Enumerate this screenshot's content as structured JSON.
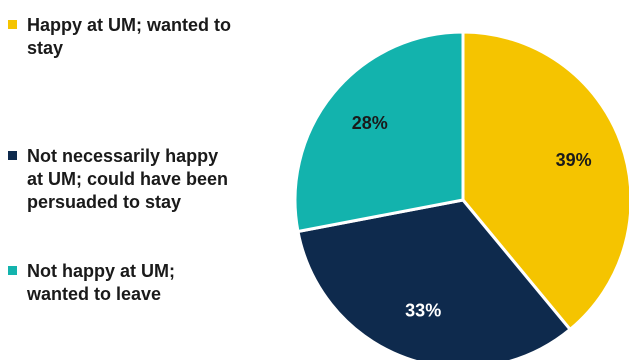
{
  "chart_data": {
    "type": "pie",
    "title": "",
    "slices": [
      {
        "label": "Happy at UM; wanted to stay",
        "value": 39,
        "value_label": "39%",
        "color": "#f5c400",
        "label_color": "#1a1a1a"
      },
      {
        "label": "Not necessarily happy at UM; could have been persuaded to stay",
        "value": 33,
        "value_label": "33%",
        "color": "#0e2a4d",
        "label_color": "#ffffff"
      },
      {
        "label": "Not happy at UM; wanted to leave",
        "value": 28,
        "value_label": "28%",
        "color": "#13b3ad",
        "label_color": "#1a1a1a"
      }
    ],
    "legend_position": "left"
  }
}
